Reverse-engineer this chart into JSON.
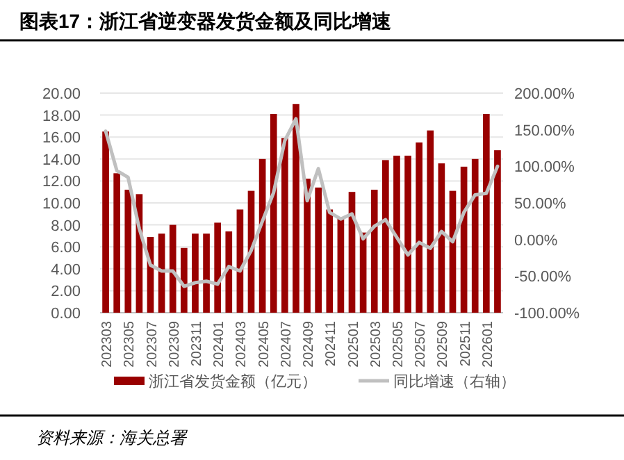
{
  "chart_data": {
    "type": "bar",
    "title": "图表17：浙江省逆变器发货金额及同比增速",
    "categories": [
      "202303",
      null,
      "202305",
      null,
      "202307",
      null,
      "202309",
      null,
      "202311",
      null,
      "202401",
      null,
      "202403",
      null,
      "202405",
      null,
      "202407",
      null,
      "202409",
      null,
      "202411",
      null,
      "202501",
      null,
      "202503",
      null,
      "202505",
      null,
      "202507",
      null,
      "202509",
      null,
      "202511",
      null,
      "202601",
      null
    ],
    "series": [
      {
        "name": "浙江省发货金额（亿元）",
        "color": "#990000",
        "values": [
          16.5,
          12.7,
          11.2,
          10.8,
          6.9,
          7.2,
          8.0,
          5.9,
          7.2,
          7.2,
          8.2,
          7.4,
          9.4,
          11.1,
          14.0,
          18.1,
          15.9,
          19.0,
          12.2,
          11.4,
          9.4,
          8.6,
          11.0,
          7.3,
          11.2,
          13.9,
          14.3,
          14.3,
          15.5,
          16.6,
          13.6,
          11.1,
          13.3,
          14.0,
          18.1,
          14.8
        ]
      },
      {
        "name": "同比增速（右轴）",
        "type": "line",
        "axis": "y2",
        "color": "#c0c0c0",
        "values": [
          148,
          94,
          85,
          15,
          -35,
          -43,
          -43,
          -64,
          -59,
          -57,
          -61,
          -37,
          -43,
          -15,
          25,
          64,
          135,
          165,
          53,
          97,
          37,
          28,
          35,
          1,
          18,
          27,
          3,
          -21,
          -4,
          -12,
          11,
          -3,
          37,
          61,
          63,
          100
        ]
      }
    ],
    "ylim": [
      0,
      20
    ],
    "yticks": [
      {
        "value": 0,
        "label": "0.00"
      },
      {
        "value": 2,
        "label": "2.00"
      },
      {
        "value": 4,
        "label": "4.00"
      },
      {
        "value": 6,
        "label": "6.00"
      },
      {
        "value": 8,
        "label": "8.00"
      },
      {
        "value": 10,
        "label": "10.00"
      },
      {
        "value": 12,
        "label": "12.00"
      },
      {
        "value": 14,
        "label": "14.00"
      },
      {
        "value": 16,
        "label": "16.00"
      },
      {
        "value": 18,
        "label": "18.00"
      },
      {
        "value": 20,
        "label": "20.00"
      }
    ],
    "y2lim": [
      -100,
      200
    ],
    "y2ticks": [
      {
        "value": -100,
        "label": "-100.00%"
      },
      {
        "value": -50,
        "label": "-50.00%"
      },
      {
        "value": 0,
        "label": "0.00%"
      },
      {
        "value": 50,
        "label": "50.00%"
      },
      {
        "value": 100,
        "label": "100.00%"
      },
      {
        "value": 150,
        "label": "150.00%"
      },
      {
        "value": 200,
        "label": "200.00%"
      }
    ],
    "grid": "y",
    "legend": "bottom",
    "annotations": [
      "资料来源：海关总署"
    ]
  }
}
